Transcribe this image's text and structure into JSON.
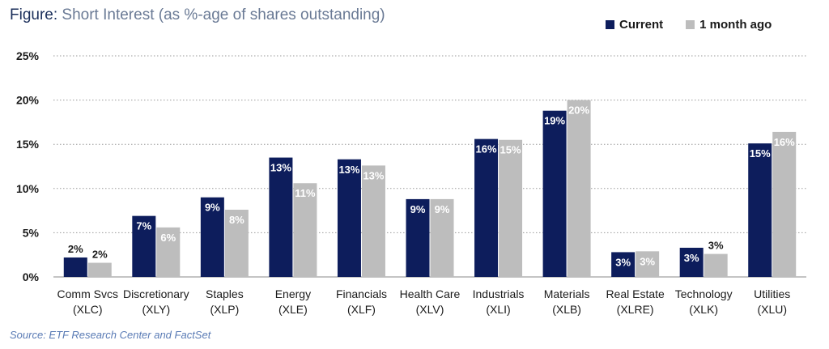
{
  "figure": {
    "title_prefix": "Figure:",
    "title_rest": " Short Interest (as %-age of shares outstanding)",
    "source": "Source: ETF Research Center and FactSet"
  },
  "colors": {
    "current": "#0d1d5c",
    "prior": "#bdbdbd",
    "grid": "#9a9a9a"
  },
  "chart_data": {
    "type": "bar",
    "categories": [
      [
        "Comm Svcs",
        "(XLC)"
      ],
      [
        "Discretionary",
        "(XLY)"
      ],
      [
        "Staples",
        "(XLP)"
      ],
      [
        "Energy",
        "(XLE)"
      ],
      [
        "Financials",
        "(XLF)"
      ],
      [
        "Health Care",
        "(XLV)"
      ],
      [
        "Industrials",
        "(XLI)"
      ],
      [
        "Materials",
        "(XLB)"
      ],
      [
        "Real Estate",
        "(XLRE)"
      ],
      [
        "Technology",
        "(XLK)"
      ],
      [
        "Utilities",
        "(XLU)"
      ]
    ],
    "series": [
      {
        "name": "Current",
        "values": [
          2.2,
          6.9,
          9.0,
          13.5,
          13.3,
          8.8,
          15.6,
          18.8,
          2.8,
          3.3,
          15.1
        ],
        "labels": [
          "2%",
          "7%",
          "9%",
          "13%",
          "13%",
          "9%",
          "16%",
          "19%",
          "3%",
          "3%",
          "15%"
        ]
      },
      {
        "name": "1 month ago",
        "values": [
          1.6,
          5.6,
          7.6,
          10.6,
          12.6,
          8.8,
          15.5,
          20.0,
          2.9,
          2.6,
          16.4
        ],
        "labels": [
          "2%",
          "6%",
          "8%",
          "11%",
          "13%",
          "9%",
          "15%",
          "20%",
          "3%",
          "3%",
          "16%"
        ]
      }
    ],
    "ylim": [
      0,
      25
    ],
    "yticks": [
      "0%",
      "5%",
      "10%",
      "15%",
      "20%",
      "25%"
    ],
    "grid": true,
    "legend": "top-right"
  }
}
